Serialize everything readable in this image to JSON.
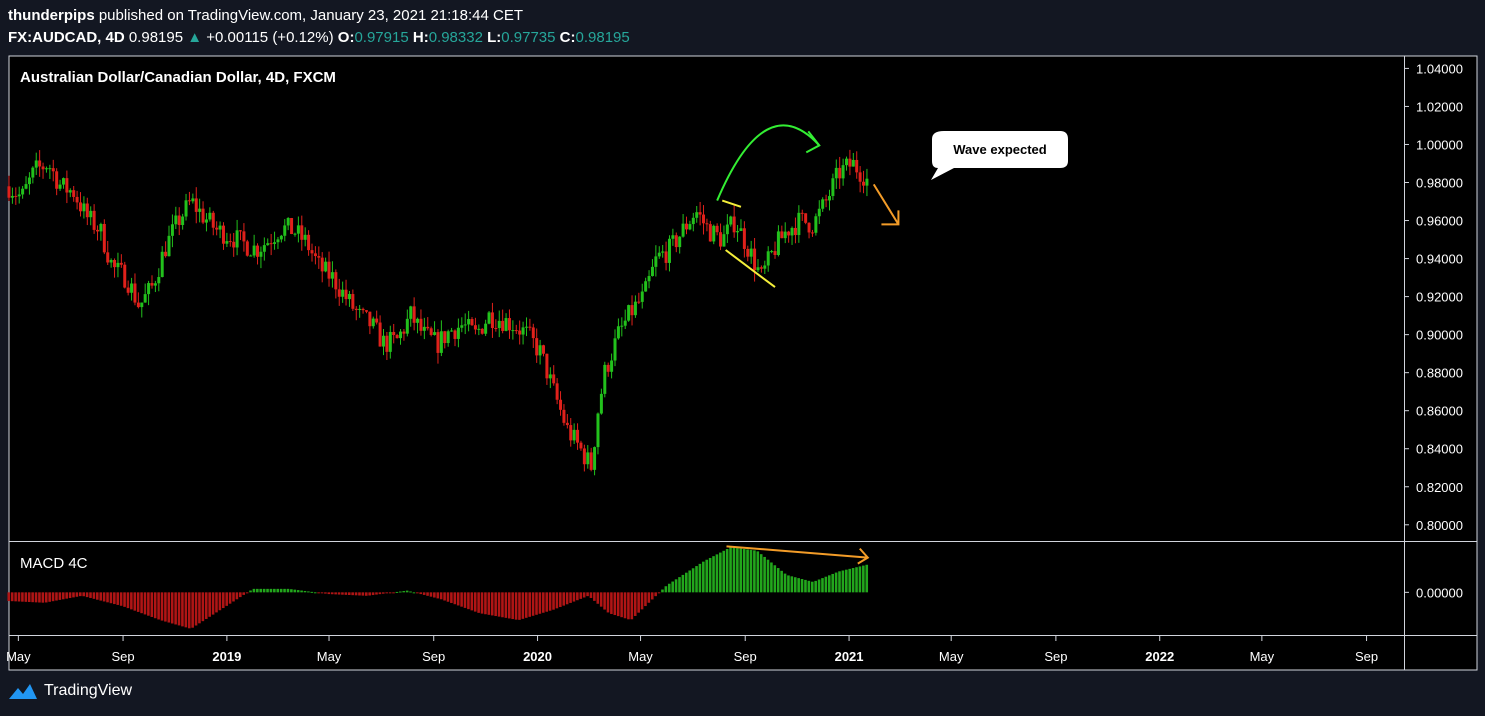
{
  "header": {
    "author": "thunderpips",
    "published": "published on TradingView.com, January 23, 2021 21:18:44 CET",
    "symbol": "FX:AUDCAD, 4D",
    "last": "0.98195",
    "change": "+0.00115 (+0.12%)",
    "o_label": "O:",
    "o_value": "0.97915",
    "h_label": "H:",
    "h_value": "0.98332",
    "l_label": "L:",
    "l_value": "0.97735",
    "c_label": "C:",
    "c_value": "0.98195"
  },
  "footer": {
    "brand": "TradingView"
  },
  "colors": {
    "up": "#22c11c",
    "down": "#e0211b",
    "bg": "#000000",
    "frame": "#131722",
    "axis_text": "#ffffff",
    "annot_green": "#33ee33",
    "annot_yellow": "#f5ef3a",
    "annot_orange": "#f39c28",
    "macd_up": "#22a61c",
    "macd_down": "#b01515"
  },
  "chart_data": {
    "type": "candlestick",
    "title": "Australian Dollar/Canadian Dollar, 4D, FXCM",
    "y_ticks": [
      "1.04000",
      "1.02000",
      "1.00000",
      "0.98000",
      "0.96000",
      "0.94000",
      "0.92000",
      "0.90000",
      "0.88000",
      "0.86000",
      "0.84000",
      "0.82000",
      "0.80000"
    ],
    "y_range": [
      0.792,
      1.046
    ],
    "x_ticks": [
      "May",
      "Sep",
      "2019",
      "May",
      "Sep",
      "2020",
      "May",
      "Sep",
      "2021",
      "May",
      "Sep",
      "2022",
      "May",
      "Sep"
    ],
    "x_range": [
      "2018-04-20",
      "2022-10-15"
    ],
    "x_tick_dates": [
      "2018-05-01",
      "2018-09-01",
      "2019-01-01",
      "2019-05-01",
      "2019-09-01",
      "2020-01-01",
      "2020-05-01",
      "2020-09-01",
      "2021-01-01",
      "2021-05-01",
      "2021-09-01",
      "2022-01-01",
      "2022-05-01",
      "2022-09-01"
    ],
    "close_path_dates": [
      "2018-04-20",
      "2018-05-05",
      "2018-05-20",
      "2018-06-05",
      "2018-06-20",
      "2018-07-05",
      "2018-07-20",
      "2018-08-05",
      "2018-08-20",
      "2018-09-05",
      "2018-09-20",
      "2018-10-05",
      "2018-10-20",
      "2018-11-05",
      "2018-11-20",
      "2018-12-05",
      "2018-12-20",
      "2019-01-05",
      "2019-01-20",
      "2019-02-05",
      "2019-02-20",
      "2019-03-05",
      "2019-03-20",
      "2019-04-05",
      "2019-04-20",
      "2019-05-05",
      "2019-05-20",
      "2019-06-05",
      "2019-06-20",
      "2019-07-05",
      "2019-07-20",
      "2019-08-05",
      "2019-08-20",
      "2019-09-05",
      "2019-09-20",
      "2019-10-05",
      "2019-10-20",
      "2019-11-05",
      "2019-11-20",
      "2019-12-05",
      "2019-12-20",
      "2020-01-05",
      "2020-01-20",
      "2020-02-05",
      "2020-02-20",
      "2020-03-05",
      "2020-03-10",
      "2020-03-20",
      "2020-04-05",
      "2020-04-20",
      "2020-05-05",
      "2020-05-20",
      "2020-06-05",
      "2020-06-20",
      "2020-07-05",
      "2020-07-20",
      "2020-08-05",
      "2020-08-20",
      "2020-09-05",
      "2020-09-20",
      "2020-10-05",
      "2020-10-20",
      "2020-11-05",
      "2020-11-20",
      "2020-12-05",
      "2020-12-20",
      "2021-01-05",
      "2021-01-23"
    ],
    "close_path_values": [
      0.978,
      0.972,
      0.986,
      0.99,
      0.978,
      0.975,
      0.962,
      0.955,
      0.935,
      0.93,
      0.915,
      0.925,
      0.945,
      0.96,
      0.97,
      0.962,
      0.955,
      0.952,
      0.948,
      0.945,
      0.95,
      0.956,
      0.955,
      0.948,
      0.935,
      0.93,
      0.92,
      0.91,
      0.905,
      0.895,
      0.897,
      0.91,
      0.9,
      0.895,
      0.902,
      0.905,
      0.9,
      0.91,
      0.908,
      0.905,
      0.9,
      0.89,
      0.87,
      0.85,
      0.84,
      0.83,
      0.855,
      0.88,
      0.9,
      0.912,
      0.92,
      0.94,
      0.945,
      0.955,
      0.965,
      0.955,
      0.95,
      0.96,
      0.945,
      0.93,
      0.945,
      0.955,
      0.96,
      0.958,
      0.97,
      0.985,
      0.99,
      0.982
    ],
    "macd": {
      "label": "MACD 4C",
      "y_tick": "0.00000",
      "y_range": [
        -0.024,
        0.029
      ],
      "hist_dates": [
        "2018-04-20",
        "2018-06-01",
        "2018-07-15",
        "2018-09-01",
        "2018-10-15",
        "2018-11-20",
        "2018-12-25",
        "2019-02-01",
        "2019-03-15",
        "2019-05-01",
        "2019-06-15",
        "2019-08-01",
        "2019-09-10",
        "2019-10-25",
        "2019-12-10",
        "2020-01-20",
        "2020-03-01",
        "2020-03-25",
        "2020-04-20",
        "2020-06-01",
        "2020-07-15",
        "2020-08-15",
        "2020-09-15",
        "2020-10-20",
        "2020-11-20",
        "2020-12-20",
        "2021-01-23"
      ],
      "hist_values": [
        -0.005,
        -0.006,
        -0.002,
        -0.008,
        -0.016,
        -0.021,
        -0.01,
        0.002,
        0.002,
        -0.001,
        -0.002,
        0.001,
        -0.004,
        -0.012,
        -0.016,
        -0.01,
        -0.002,
        -0.012,
        -0.016,
        0.004,
        0.018,
        0.026,
        0.024,
        0.01,
        0.006,
        0.012,
        0.016
      ]
    },
    "annotations": {
      "callout": "Wave expected",
      "green_arc": [
        [
          "2020-07-30",
          0.9705
        ],
        [
          "2020-09-25",
          1.0015
        ],
        [
          "2020-11-27",
          0.9995
        ]
      ],
      "yellow_flag": [
        [
          "2020-08-05",
          0.9705
        ],
        [
          "2020-08-27",
          0.9672
        ],
        [
          "2020-08-09",
          0.9445
        ],
        [
          "2020-10-06",
          0.925
        ]
      ],
      "orange_arrow": [
        [
          "2021-01-30",
          0.979
        ],
        [
          "2021-02-28",
          0.958
        ]
      ],
      "macd_orange_line": [
        [
          "2020-08-10",
          0.0265
        ],
        [
          "2021-01-23",
          0.02
        ]
      ]
    }
  }
}
